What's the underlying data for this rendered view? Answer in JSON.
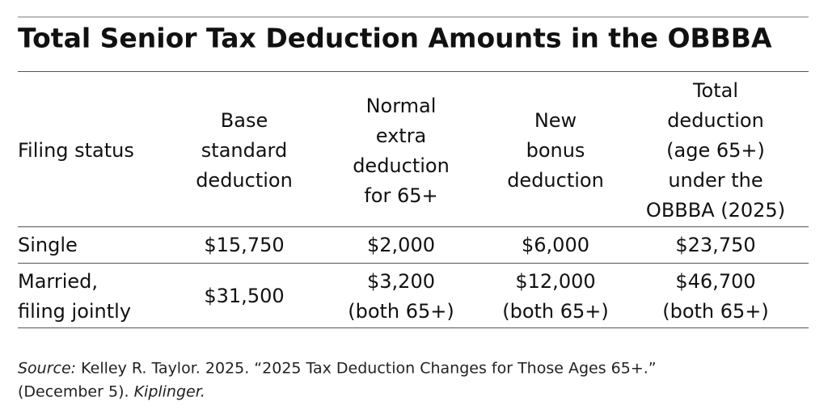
{
  "title": "Total Senior Tax Deduction Amounts in the OBBBA",
  "table": {
    "header": [
      [
        "Filing status"
      ],
      [
        "Base",
        "standard",
        "deduction"
      ],
      [
        "Normal",
        "extra",
        "deduction",
        "for 65+"
      ],
      [
        "New",
        "bonus",
        "deduction"
      ],
      [
        "Total",
        "deduction",
        "(age 65+)",
        "under the",
        "OBBBA (2025)"
      ]
    ],
    "rows": [
      [
        [
          "Single"
        ],
        [
          "$15,750"
        ],
        [
          "$2,000"
        ],
        [
          "$6,000"
        ],
        [
          "$23,750"
        ]
      ],
      [
        [
          "Married,",
          "filing jointly"
        ],
        [
          "$31,500"
        ],
        [
          "$3,200",
          "(both 65+)"
        ],
        [
          "$12,000",
          "(both 65+)"
        ],
        [
          "$46,700",
          "(both 65+)"
        ]
      ]
    ]
  },
  "source": {
    "label": "Source:",
    "text": "Kelley R. Taylor. 2025. “2025 Tax Deduction Changes for Those Ages 65+.”",
    "date": "(December 5).",
    "publication": "Kiplinger."
  }
}
